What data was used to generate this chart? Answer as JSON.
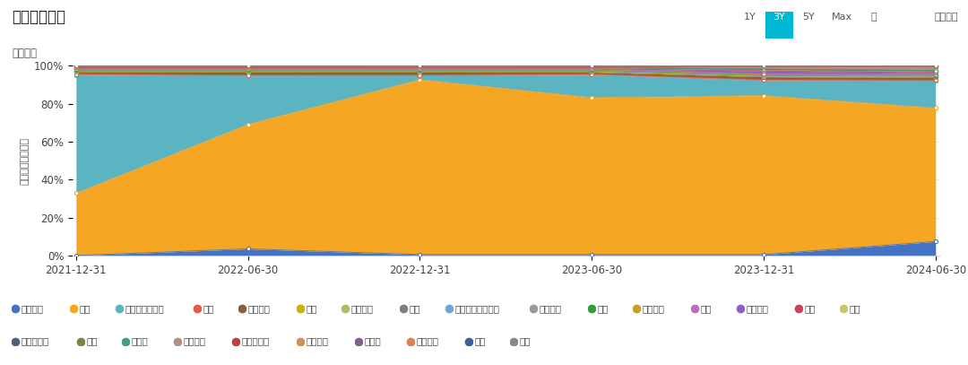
{
  "title": "行业配置变化",
  "subtitle": "行业占比",
  "ylabel": "占股票投资市值比",
  "x_labels": [
    "2021-12-31",
    "2022-06-30",
    "2022-12-31",
    "2023-06-30",
    "2023-12-31",
    "2024-06-30"
  ],
  "series": [
    {
      "name": "石油石化",
      "color": "#4472c4",
      "values": [
        0.0,
        3.5,
        0.5,
        0.5,
        0.5,
        7.5
      ]
    },
    {
      "name": "煤炭",
      "color": "#f5a623",
      "values": [
        33.0,
        65.5,
        93.0,
        83.0,
        84.5,
        71.5
      ]
    },
    {
      "name": "电力及公用事业",
      "color": "#5ab4c2",
      "values": [
        62.5,
        25.5,
        2.0,
        12.0,
        8.0,
        14.5
      ]
    },
    {
      "name": "钢铁",
      "color": "#e05c4b",
      "values": [
        0.5,
        0.5,
        0.5,
        0.5,
        0.5,
        0.5
      ]
    },
    {
      "name": "基础化工",
      "color": "#8b5e3c",
      "values": [
        1.0,
        1.5,
        1.5,
        1.0,
        1.5,
        1.5
      ]
    },
    {
      "name": "建筑",
      "color": "#c8b400",
      "values": [
        0.2,
        0.2,
        0.2,
        0.2,
        0.2,
        0.2
      ]
    },
    {
      "name": "轻工制造",
      "color": "#a8c060",
      "values": [
        0.2,
        0.2,
        0.2,
        0.2,
        0.2,
        0.2
      ]
    },
    {
      "name": "机械",
      "color": "#7f7f7f",
      "values": [
        0.2,
        0.2,
        0.2,
        0.2,
        0.2,
        0.2
      ]
    },
    {
      "name": "电力设备及新能源",
      "color": "#70a7d8",
      "values": [
        0.2,
        0.2,
        0.2,
        0.2,
        0.2,
        0.2
      ]
    },
    {
      "name": "国防军工",
      "color": "#9a9a9a",
      "values": [
        0.2,
        0.2,
        0.2,
        0.2,
        0.2,
        0.2
      ]
    },
    {
      "name": "汽车",
      "color": "#3b9b3b",
      "values": [
        0.2,
        0.2,
        0.2,
        0.2,
        0.2,
        0.2
      ]
    },
    {
      "name": "商贸零售",
      "color": "#c0a030",
      "values": [
        0.2,
        0.2,
        0.2,
        0.2,
        0.2,
        0.2
      ]
    },
    {
      "name": "家电",
      "color": "#b870b8",
      "values": [
        0.2,
        0.2,
        0.2,
        0.2,
        0.2,
        0.2
      ]
    },
    {
      "name": "纺织服装",
      "color": "#9060c0",
      "values": [
        0.2,
        0.2,
        0.2,
        0.2,
        1.5,
        0.8
      ]
    },
    {
      "name": "医药",
      "color": "#d04060",
      "values": [
        0.2,
        0.2,
        0.2,
        0.2,
        0.4,
        0.4
      ]
    },
    {
      "name": "银行",
      "color": "#c8c868",
      "values": [
        0.2,
        0.2,
        0.2,
        0.2,
        0.2,
        0.4
      ]
    },
    {
      "name": "非银行金融",
      "color": "#506080",
      "values": [
        0.2,
        0.2,
        0.2,
        0.2,
        0.2,
        0.2
      ]
    },
    {
      "name": "通信",
      "color": "#80804a",
      "values": [
        0.1,
        0.1,
        0.1,
        0.1,
        0.1,
        0.1
      ]
    },
    {
      "name": "计算机",
      "color": "#40a080",
      "values": [
        0.1,
        0.1,
        0.1,
        0.1,
        0.1,
        0.1
      ]
    },
    {
      "name": "有色金属",
      "color": "#b09080",
      "values": [
        0.2,
        0.2,
        0.2,
        0.2,
        1.2,
        2.0
      ]
    },
    {
      "name": "消费者服务",
      "color": "#c04040",
      "values": [
        0.1,
        0.1,
        0.1,
        0.1,
        0.1,
        0.1
      ]
    },
    {
      "name": "食品饮料",
      "color": "#d09050",
      "values": [
        0.1,
        0.1,
        0.1,
        0.1,
        0.1,
        0.1
      ]
    },
    {
      "name": "房地产",
      "color": "#806090",
      "values": [
        0.1,
        0.1,
        0.1,
        0.1,
        0.1,
        0.1
      ]
    },
    {
      "name": "交通运输",
      "color": "#e08050",
      "values": [
        0.1,
        0.1,
        0.1,
        0.1,
        0.1,
        0.1
      ]
    },
    {
      "name": "电子",
      "color": "#4060a0",
      "values": [
        0.1,
        0.1,
        0.1,
        0.1,
        0.1,
        0.1
      ]
    },
    {
      "name": "传媒",
      "color": "#888888",
      "values": [
        0.1,
        0.1,
        0.1,
        0.1,
        0.1,
        0.1
      ]
    }
  ],
  "legend_row1": [
    [
      "石油石化",
      "#4472c4"
    ],
    [
      "煤炭",
      "#f5a623"
    ],
    [
      "电力及公用事业",
      "#5ab4c2"
    ],
    [
      "钢铁",
      "#e05c4b"
    ],
    [
      "基础化工",
      "#8b5e3c"
    ],
    [
      "建筑",
      "#c8b400"
    ],
    [
      "轻工制造",
      "#a8c060"
    ],
    [
      "机械",
      "#7f7f7f"
    ],
    [
      "电力设备及新能源",
      "#70a7d8"
    ],
    [
      "国防军工",
      "#9a9a9a"
    ],
    [
      "汽车",
      "#3b9b3b"
    ],
    [
      "商贸零售",
      "#c0a030"
    ],
    [
      "家电",
      "#b870b8"
    ],
    [
      "纺织服装",
      "#9060c0"
    ],
    [
      "医药",
      "#d04060"
    ],
    [
      "银行",
      "#c8c868"
    ]
  ],
  "legend_row2": [
    [
      "非银行金融",
      "#506080"
    ],
    [
      "通信",
      "#80804a"
    ],
    [
      "计算机",
      "#40a080"
    ],
    [
      "有色金属",
      "#b09080"
    ],
    [
      "消费者服务",
      "#c04040"
    ],
    [
      "食品饮料",
      "#d09050"
    ],
    [
      "房地产",
      "#806090"
    ],
    [
      "交通运输",
      "#e08050"
    ],
    [
      "电子",
      "#4060a0"
    ],
    [
      "传媒",
      "#888888"
    ]
  ]
}
